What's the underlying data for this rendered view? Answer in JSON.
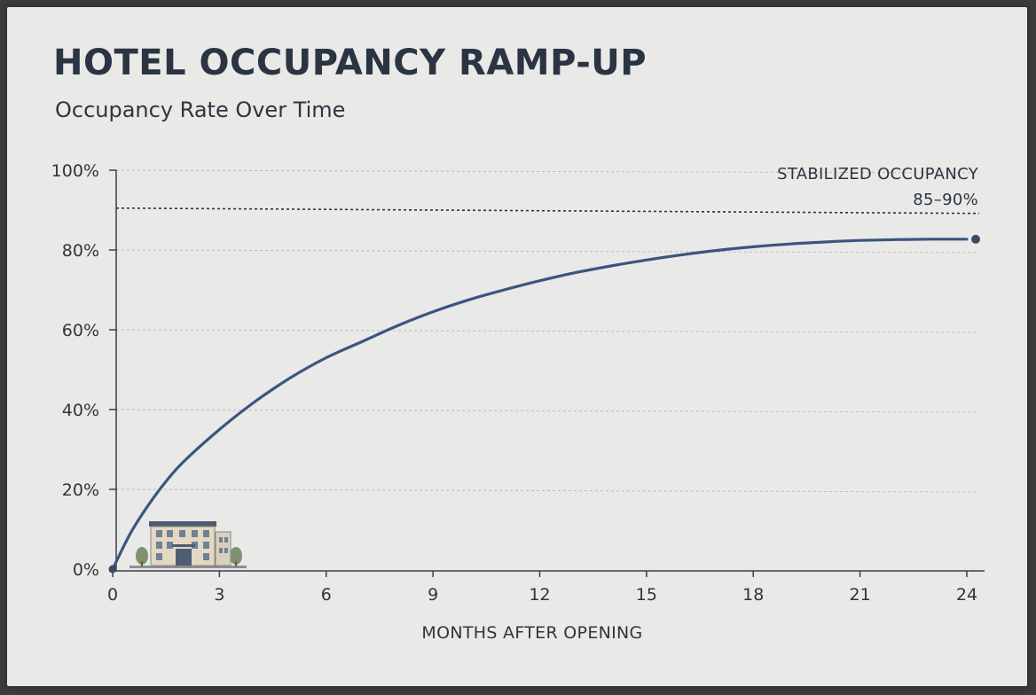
{
  "chart_data": {
    "type": "line",
    "title": "HOTEL OCCUPANCY RAMP-UP",
    "subtitle": "Occupancy Rate Over Time",
    "xlabel": "MONTHS AFTER OPENING",
    "ylabel": "",
    "xlim": [
      0,
      24
    ],
    "ylim": [
      0,
      100
    ],
    "x_ticks": [
      0,
      3,
      6,
      9,
      12,
      15,
      18,
      21,
      24
    ],
    "x_tick_labels": [
      "0",
      "3",
      "6",
      "9",
      "12",
      "15",
      "18",
      "21",
      "24"
    ],
    "y_ticks": [
      0,
      20,
      40,
      60,
      80,
      100
    ],
    "y_tick_labels": [
      "0%",
      "20%",
      "40%",
      "60%",
      "80%",
      "100%"
    ],
    "grid": true,
    "series": [
      {
        "color": "#3b5580",
        "x": [
          0,
          0.5,
          1,
          1.5,
          2,
          3,
          4,
          5,
          6,
          7,
          8,
          9,
          10,
          11,
          12,
          13,
          14,
          15,
          16,
          17,
          18,
          19,
          20,
          21,
          22,
          23,
          24
        ],
        "values": [
          0,
          9,
          16,
          22,
          27,
          35,
          42,
          48,
          53,
          57,
          61,
          64.5,
          67.5,
          70,
          72.3,
          74.3,
          76,
          77.5,
          78.8,
          79.9,
          80.8,
          81.5,
          82,
          82.4,
          82.6,
          82.7,
          82.7
        ]
      }
    ],
    "reference_line": {
      "y": 90.5,
      "style": "dotted",
      "label_line1": "STABILIZED OCCUPANCY",
      "label_line2": "85–90%"
    },
    "icons": {
      "origin_icon": "hotel-building-icon"
    },
    "colors": {
      "line": "#3b5580",
      "text": "#2f3540",
      "grid": "#b8bbbf",
      "axis": "#3a3f47"
    }
  }
}
